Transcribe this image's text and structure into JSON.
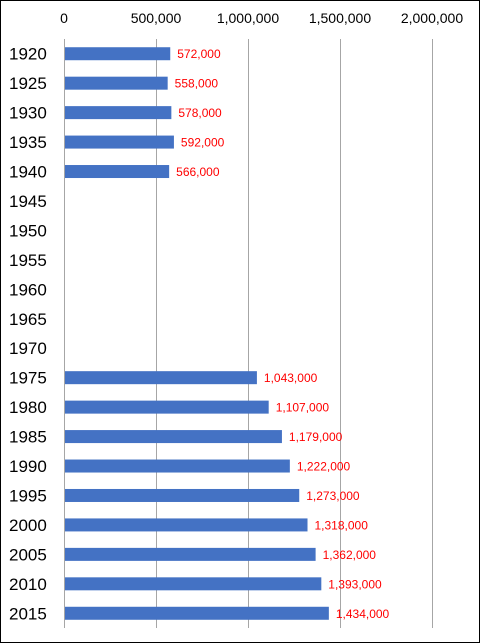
{
  "chart_data": {
    "type": "bar",
    "orientation": "horizontal",
    "xaxis_position": "top",
    "xlim": [
      0,
      2000000
    ],
    "x_ticks": [
      0,
      500000,
      1000000,
      1500000,
      2000000
    ],
    "x_tick_labels": [
      "0",
      "500,000",
      "1,000,000",
      "1,500,000",
      "2,000,000"
    ],
    "grid": true,
    "categories": [
      "1920",
      "1925",
      "1930",
      "1935",
      "1940",
      "1945",
      "1950",
      "1955",
      "1960",
      "1965",
      "1970",
      "1975",
      "1980",
      "1985",
      "1990",
      "1995",
      "2000",
      "2005",
      "2010",
      "2015"
    ],
    "values": [
      572000,
      558000,
      578000,
      592000,
      566000,
      null,
      null,
      null,
      null,
      null,
      null,
      1043000,
      1107000,
      1179000,
      1222000,
      1273000,
      1318000,
      1362000,
      1393000,
      1434000
    ],
    "data_labels": [
      "572,000",
      "558,000",
      "578,000",
      "592,000",
      "566,000",
      "",
      "",
      "",
      "",
      "",
      "",
      "1,043,000",
      "1,107,000",
      "1,179,000",
      "1,222,000",
      "1,273,000",
      "1,318,000",
      "1,362,000",
      "1,393,000",
      "1,434,000"
    ],
    "bar_color": "#4472C4",
    "label_color": "#FF0000",
    "grid_color": "#A6A6A6"
  }
}
